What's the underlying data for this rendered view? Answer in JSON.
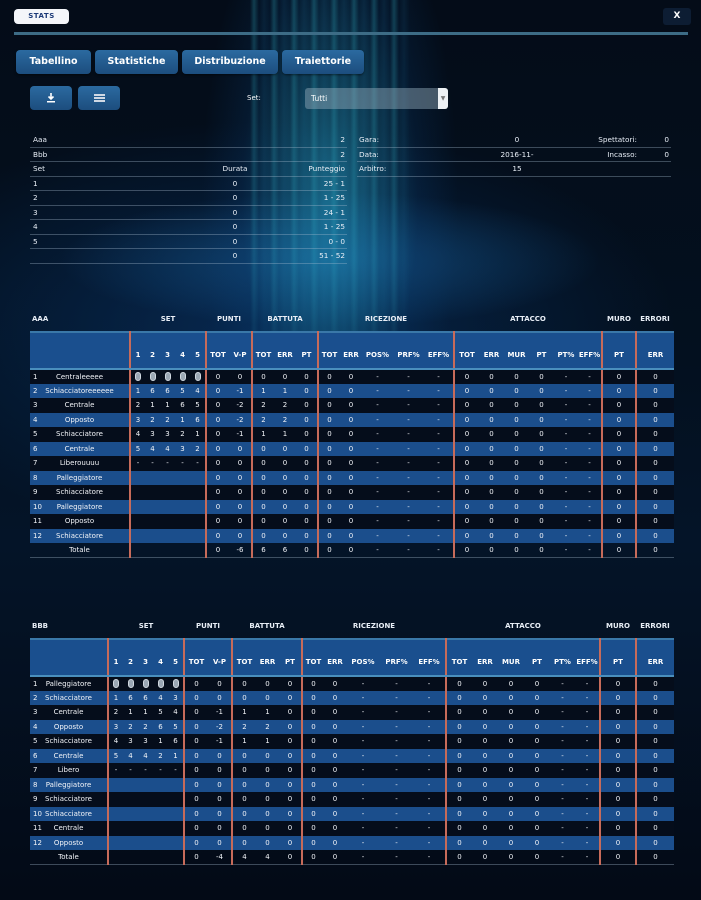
{
  "header": {
    "badge": "STATS",
    "close_label": "X"
  },
  "tabs": [
    {
      "label": "Tabellino"
    },
    {
      "label": "Statistiche"
    },
    {
      "label": "Distribuzione"
    },
    {
      "label": "Traiettorie"
    }
  ],
  "toolbar": {
    "download_icon": "download-icon",
    "list_icon": "list-icon",
    "set_label": "Set:",
    "set_value": "Tutti"
  },
  "summary": {
    "teams": [
      {
        "name": "Aaa",
        "score": "2"
      },
      {
        "name": "Bbb",
        "score": "2"
      }
    ],
    "set_header": {
      "set": "Set",
      "durata": "Durata",
      "punteggio": "Punteggio"
    },
    "sets": [
      {
        "set": "1",
        "durata": "0",
        "punteggio": "25 - 1"
      },
      {
        "set": "2",
        "durata": "0",
        "punteggio": "1 - 25"
      },
      {
        "set": "3",
        "durata": "0",
        "punteggio": "24 - 1"
      },
      {
        "set": "4",
        "durata": "0",
        "punteggio": "1 - 25"
      },
      {
        "set": "5",
        "durata": "0",
        "punteggio": "0 - 0"
      }
    ],
    "total": {
      "set": "",
      "durata": "0",
      "punteggio": "51 - 52"
    },
    "info": {
      "gara_label": "Gara:",
      "gara": "0",
      "spettatori_label": "Spettatori:",
      "spettatori": "0",
      "data_label": "Data:",
      "data": "2016-11-15",
      "incasso_label": "Incasso:",
      "incasso": "0",
      "arbitro_label": "Arbitro:",
      "arbitro": ""
    }
  },
  "groups": {
    "set": "SET",
    "punti": "PUNTI",
    "battuta": "BATTUTA",
    "ricezione": "RICEZIONE",
    "attacco": "ATTACCO",
    "muro": "MURO",
    "errori": "ERRORI"
  },
  "columns": [
    "1",
    "2",
    "3",
    "4",
    "5",
    "TOT",
    "V-P",
    "TOT",
    "ERR",
    "PT",
    "TOT",
    "ERR",
    "POS%",
    "PRF%",
    "EFF%",
    "TOT",
    "ERR",
    "MUR",
    "PT",
    "PT%",
    "EFF%",
    "PT",
    "ERR"
  ],
  "team_a": {
    "name": "AAA",
    "rows": [
      {
        "n": "1",
        "role": "Centraleeeee",
        "sets": [
          "icon",
          "icon",
          "icon",
          "icon",
          "icon"
        ],
        "vals": [
          "0",
          "0",
          "0",
          "0",
          "0",
          "0",
          "0",
          "-",
          "-",
          "-",
          "0",
          "0",
          "0",
          "0",
          "-",
          "-",
          "0",
          "0"
        ]
      },
      {
        "n": "2",
        "role": "Schiacciatoreeeeee",
        "sets": [
          "1",
          "6",
          "6",
          "5",
          "4"
        ],
        "vals": [
          "0",
          "-1",
          "1",
          "1",
          "0",
          "0",
          "0",
          "-",
          "-",
          "-",
          "0",
          "0",
          "0",
          "0",
          "-",
          "-",
          "0",
          "0"
        ]
      },
      {
        "n": "3",
        "role": "Centrale",
        "sets": [
          "2",
          "1",
          "1",
          "6",
          "5"
        ],
        "vals": [
          "0",
          "-2",
          "2",
          "2",
          "0",
          "0",
          "0",
          "-",
          "-",
          "-",
          "0",
          "0",
          "0",
          "0",
          "-",
          "-",
          "0",
          "0"
        ]
      },
      {
        "n": "4",
        "role": "Opposto",
        "sets": [
          "3",
          "2",
          "2",
          "1",
          "6"
        ],
        "vals": [
          "0",
          "-2",
          "2",
          "2",
          "0",
          "0",
          "0",
          "-",
          "-",
          "-",
          "0",
          "0",
          "0",
          "0",
          "-",
          "-",
          "0",
          "0"
        ]
      },
      {
        "n": "5",
        "role": "Schiacciatore",
        "sets": [
          "4",
          "3",
          "3",
          "2",
          "1"
        ],
        "vals": [
          "0",
          "-1",
          "1",
          "1",
          "0",
          "0",
          "0",
          "-",
          "-",
          "-",
          "0",
          "0",
          "0",
          "0",
          "-",
          "-",
          "0",
          "0"
        ]
      },
      {
        "n": "6",
        "role": "Centrale",
        "sets": [
          "5",
          "4",
          "4",
          "3",
          "2"
        ],
        "vals": [
          "0",
          "0",
          "0",
          "0",
          "0",
          "0",
          "0",
          "-",
          "-",
          "-",
          "0",
          "0",
          "0",
          "0",
          "-",
          "-",
          "0",
          "0"
        ]
      },
      {
        "n": "7",
        "role": "Liberouuuu",
        "sets": [
          "-",
          "-",
          "-",
          "-",
          "-"
        ],
        "vals": [
          "0",
          "0",
          "0",
          "0",
          "0",
          "0",
          "0",
          "-",
          "-",
          "-",
          "0",
          "0",
          "0",
          "0",
          "-",
          "-",
          "0",
          "0"
        ]
      },
      {
        "n": "8",
        "role": "Palleggiatore",
        "sets": [
          "",
          "",
          "",
          "",
          ""
        ],
        "vals": [
          "0",
          "0",
          "0",
          "0",
          "0",
          "0",
          "0",
          "-",
          "-",
          "-",
          "0",
          "0",
          "0",
          "0",
          "-",
          "-",
          "0",
          "0"
        ]
      },
      {
        "n": "9",
        "role": "Schiacciatore",
        "sets": [
          "",
          "",
          "",
          "",
          ""
        ],
        "vals": [
          "0",
          "0",
          "0",
          "0",
          "0",
          "0",
          "0",
          "-",
          "-",
          "-",
          "0",
          "0",
          "0",
          "0",
          "-",
          "-",
          "0",
          "0"
        ]
      },
      {
        "n": "10",
        "role": "Palleggiatore",
        "sets": [
          "",
          "",
          "",
          "",
          ""
        ],
        "vals": [
          "0",
          "0",
          "0",
          "0",
          "0",
          "0",
          "0",
          "-",
          "-",
          "-",
          "0",
          "0",
          "0",
          "0",
          "-",
          "-",
          "0",
          "0"
        ]
      },
      {
        "n": "11",
        "role": "Opposto",
        "sets": [
          "",
          "",
          "",
          "",
          ""
        ],
        "vals": [
          "0",
          "0",
          "0",
          "0",
          "0",
          "0",
          "0",
          "-",
          "-",
          "-",
          "0",
          "0",
          "0",
          "0",
          "-",
          "-",
          "0",
          "0"
        ]
      },
      {
        "n": "12",
        "role": "Schiacciatore",
        "sets": [
          "",
          "",
          "",
          "",
          ""
        ],
        "vals": [
          "0",
          "0",
          "0",
          "0",
          "0",
          "0",
          "0",
          "-",
          "-",
          "-",
          "0",
          "0",
          "0",
          "0",
          "-",
          "-",
          "0",
          "0"
        ]
      }
    ],
    "total": {
      "label": "Totale",
      "vals": [
        "0",
        "-6",
        "6",
        "6",
        "0",
        "0",
        "0",
        "-",
        "-",
        "-",
        "0",
        "0",
        "0",
        "0",
        "-",
        "-",
        "0",
        "0"
      ]
    }
  },
  "team_b": {
    "name": "BBB",
    "rows": [
      {
        "n": "1",
        "role": "Palleggiatore",
        "sets": [
          "icon",
          "icon",
          "icon",
          "icon",
          "icon"
        ],
        "vals": [
          "0",
          "0",
          "0",
          "0",
          "0",
          "0",
          "0",
          "-",
          "-",
          "-",
          "0",
          "0",
          "0",
          "0",
          "-",
          "-",
          "0",
          "0"
        ]
      },
      {
        "n": "2",
        "role": "Schiacciatore",
        "sets": [
          "1",
          "6",
          "6",
          "4",
          "3"
        ],
        "vals": [
          "0",
          "0",
          "0",
          "0",
          "0",
          "0",
          "0",
          "-",
          "-",
          "-",
          "0",
          "0",
          "0",
          "0",
          "-",
          "-",
          "0",
          "0"
        ]
      },
      {
        "n": "3",
        "role": "Centrale",
        "sets": [
          "2",
          "1",
          "1",
          "5",
          "4"
        ],
        "vals": [
          "0",
          "-1",
          "1",
          "1",
          "0",
          "0",
          "0",
          "-",
          "-",
          "-",
          "0",
          "0",
          "0",
          "0",
          "-",
          "-",
          "0",
          "0"
        ]
      },
      {
        "n": "4",
        "role": "Opposto",
        "sets": [
          "3",
          "2",
          "2",
          "6",
          "5"
        ],
        "vals": [
          "0",
          "-2",
          "2",
          "2",
          "0",
          "0",
          "0",
          "-",
          "-",
          "-",
          "0",
          "0",
          "0",
          "0",
          "-",
          "-",
          "0",
          "0"
        ]
      },
      {
        "n": "5",
        "role": "Schiacciatore",
        "sets": [
          "4",
          "3",
          "3",
          "1",
          "6"
        ],
        "vals": [
          "0",
          "-1",
          "1",
          "1",
          "0",
          "0",
          "0",
          "-",
          "-",
          "-",
          "0",
          "0",
          "0",
          "0",
          "-",
          "-",
          "0",
          "0"
        ]
      },
      {
        "n": "6",
        "role": "Centrale",
        "sets": [
          "5",
          "4",
          "4",
          "2",
          "1"
        ],
        "vals": [
          "0",
          "0",
          "0",
          "0",
          "0",
          "0",
          "0",
          "-",
          "-",
          "-",
          "0",
          "0",
          "0",
          "0",
          "-",
          "-",
          "0",
          "0"
        ]
      },
      {
        "n": "7",
        "role": "Libero",
        "sets": [
          "-",
          "-",
          "-",
          "-",
          "-"
        ],
        "vals": [
          "0",
          "0",
          "0",
          "0",
          "0",
          "0",
          "0",
          "-",
          "-",
          "-",
          "0",
          "0",
          "0",
          "0",
          "-",
          "-",
          "0",
          "0"
        ]
      },
      {
        "n": "8",
        "role": "Palleggiatore",
        "sets": [
          "",
          "",
          "",
          "",
          ""
        ],
        "vals": [
          "0",
          "0",
          "0",
          "0",
          "0",
          "0",
          "0",
          "-",
          "-",
          "-",
          "0",
          "0",
          "0",
          "0",
          "-",
          "-",
          "0",
          "0"
        ]
      },
      {
        "n": "9",
        "role": "Schiacciatore",
        "sets": [
          "",
          "",
          "",
          "",
          ""
        ],
        "vals": [
          "0",
          "0",
          "0",
          "0",
          "0",
          "0",
          "0",
          "-",
          "-",
          "-",
          "0",
          "0",
          "0",
          "0",
          "-",
          "-",
          "0",
          "0"
        ]
      },
      {
        "n": "10",
        "role": "Schiacciatore",
        "sets": [
          "",
          "",
          "",
          "",
          ""
        ],
        "vals": [
          "0",
          "0",
          "0",
          "0",
          "0",
          "0",
          "0",
          "-",
          "-",
          "-",
          "0",
          "0",
          "0",
          "0",
          "-",
          "-",
          "0",
          "0"
        ]
      },
      {
        "n": "11",
        "role": "Centrale",
        "sets": [
          "",
          "",
          "",
          "",
          ""
        ],
        "vals": [
          "0",
          "0",
          "0",
          "0",
          "0",
          "0",
          "0",
          "-",
          "-",
          "-",
          "0",
          "0",
          "0",
          "0",
          "-",
          "-",
          "0",
          "0"
        ]
      },
      {
        "n": "12",
        "role": "Opposto",
        "sets": [
          "",
          "",
          "",
          "",
          ""
        ],
        "vals": [
          "0",
          "0",
          "0",
          "0",
          "0",
          "0",
          "0",
          "-",
          "-",
          "-",
          "0",
          "0",
          "0",
          "0",
          "-",
          "-",
          "0",
          "0"
        ]
      }
    ],
    "total": {
      "label": "Totale",
      "vals": [
        "0",
        "-4",
        "4",
        "4",
        "0",
        "0",
        "0",
        "-",
        "-",
        "-",
        "0",
        "0",
        "0",
        "0",
        "-",
        "-",
        "0",
        "0"
      ]
    }
  },
  "colors": {
    "accent": "#1b4e8c",
    "separator": "#c76b5a",
    "background": "#030a16"
  }
}
